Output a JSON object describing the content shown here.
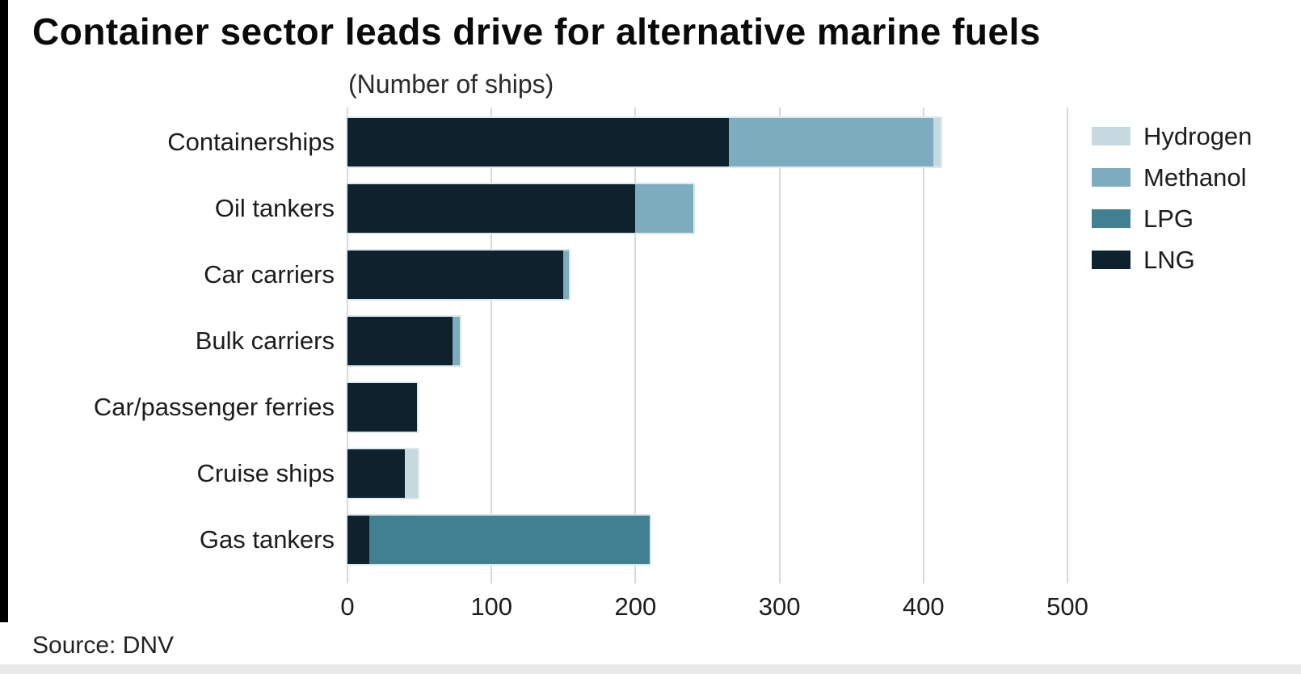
{
  "source_note": "Source: DNV",
  "chart_data": {
    "type": "bar",
    "orientation": "horizontal",
    "stacked": true,
    "title": "Container sector leads drive for alternative marine fuels",
    "subtitle": "(Number of ships)",
    "xlabel": "",
    "ylabel": "",
    "xlim": [
      0,
      500
    ],
    "x_ticks": [
      0,
      100,
      200,
      300,
      400,
      500
    ],
    "grid": true,
    "legend_position": "right-top",
    "legend_order": [
      "Hydrogen",
      "Methanol",
      "LPG",
      "LNG"
    ],
    "stack_order": [
      "LNG",
      "LPG",
      "Methanol",
      "Hydrogen"
    ],
    "categories": [
      "Containerships",
      "Oil tankers",
      "Car carriers",
      "Bulk carriers",
      "Car/passenger ferries",
      "Cruise ships",
      "Gas tankers"
    ],
    "series": [
      {
        "name": "LNG",
        "color": "#0d222c",
        "values": [
          265,
          200,
          150,
          73,
          48,
          40,
          15
        ]
      },
      {
        "name": "LPG",
        "color": "#417f93",
        "values": [
          0,
          0,
          0,
          0,
          0,
          0,
          195
        ]
      },
      {
        "name": "Methanol",
        "color": "#7dacbe",
        "values": [
          142,
          40,
          4,
          5,
          0,
          0,
          0
        ]
      },
      {
        "name": "Hydrogen",
        "color": "#c6d9e0",
        "values": [
          5,
          0,
          0,
          0,
          0,
          9,
          0
        ]
      }
    ],
    "totals": [
      412,
      240,
      154,
      78,
      48,
      49,
      210
    ],
    "colors": {
      "grid": "#d9d9d9",
      "bar_outline": "#dde9ed",
      "accent_bar": "#000000",
      "bottom_strip": "#e9e9e9"
    }
  }
}
